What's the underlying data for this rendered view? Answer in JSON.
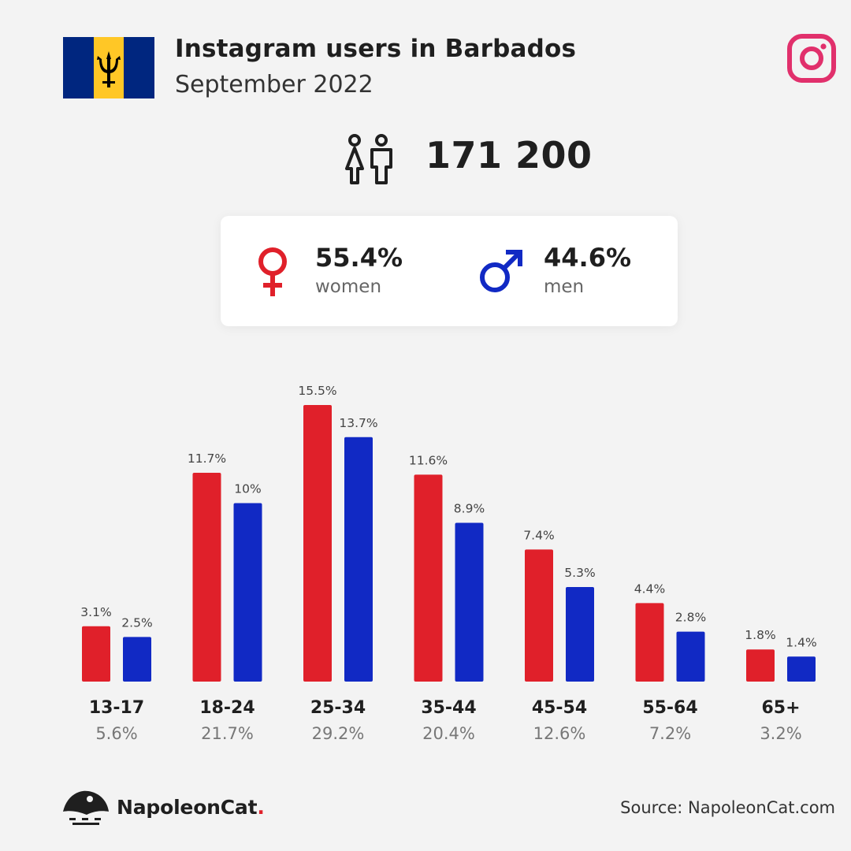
{
  "header": {
    "title": "Instagram users in Barbados",
    "subtitle": "September 2022"
  },
  "flag": {
    "colors": [
      "#00267f",
      "#ffc726",
      "#00267f"
    ],
    "emblem": "trident-icon"
  },
  "icons": {
    "platform": "instagram-icon",
    "users": "people-icon",
    "female": "female-symbol-icon",
    "male": "male-symbol-icon",
    "brand": "napoleoncat-logo-icon"
  },
  "total_users": "171 200",
  "gender": {
    "women": {
      "percent": "55.4%",
      "label": "women",
      "color": "#e0202a"
    },
    "men": {
      "percent": "44.6%",
      "label": "men",
      "color": "#1129c4"
    }
  },
  "chart_data": {
    "type": "bar",
    "categories": [
      "13-17",
      "18-24",
      "25-34",
      "35-44",
      "45-54",
      "55-64",
      "65+"
    ],
    "category_totals": [
      "5.6%",
      "21.7%",
      "29.2%",
      "20.4%",
      "12.6%",
      "7.2%",
      "3.2%"
    ],
    "series": [
      {
        "color": "#e0202a",
        "values": [
          3.1,
          11.7,
          15.5,
          11.6,
          7.4,
          4.4,
          1.8
        ],
        "labels": [
          "3.1%",
          "11.7%",
          "15.5%",
          "11.6%",
          "7.4%",
          "4.4%",
          "1.8%"
        ]
      },
      {
        "color": "#1129c4",
        "values": [
          2.5,
          10,
          13.7,
          8.9,
          5.3,
          2.8,
          1.4
        ],
        "labels": [
          "2.5%",
          "10%",
          "13.7%",
          "8.9%",
          "5.3%",
          "2.8%",
          "1.4%"
        ]
      }
    ],
    "ylim": [
      0,
      15.5
    ],
    "grid": false,
    "legend": "none"
  },
  "footer": {
    "brand_name": "NapoleonCat",
    "brand_dot": ".",
    "source": "Source: NapoleonCat.com"
  }
}
